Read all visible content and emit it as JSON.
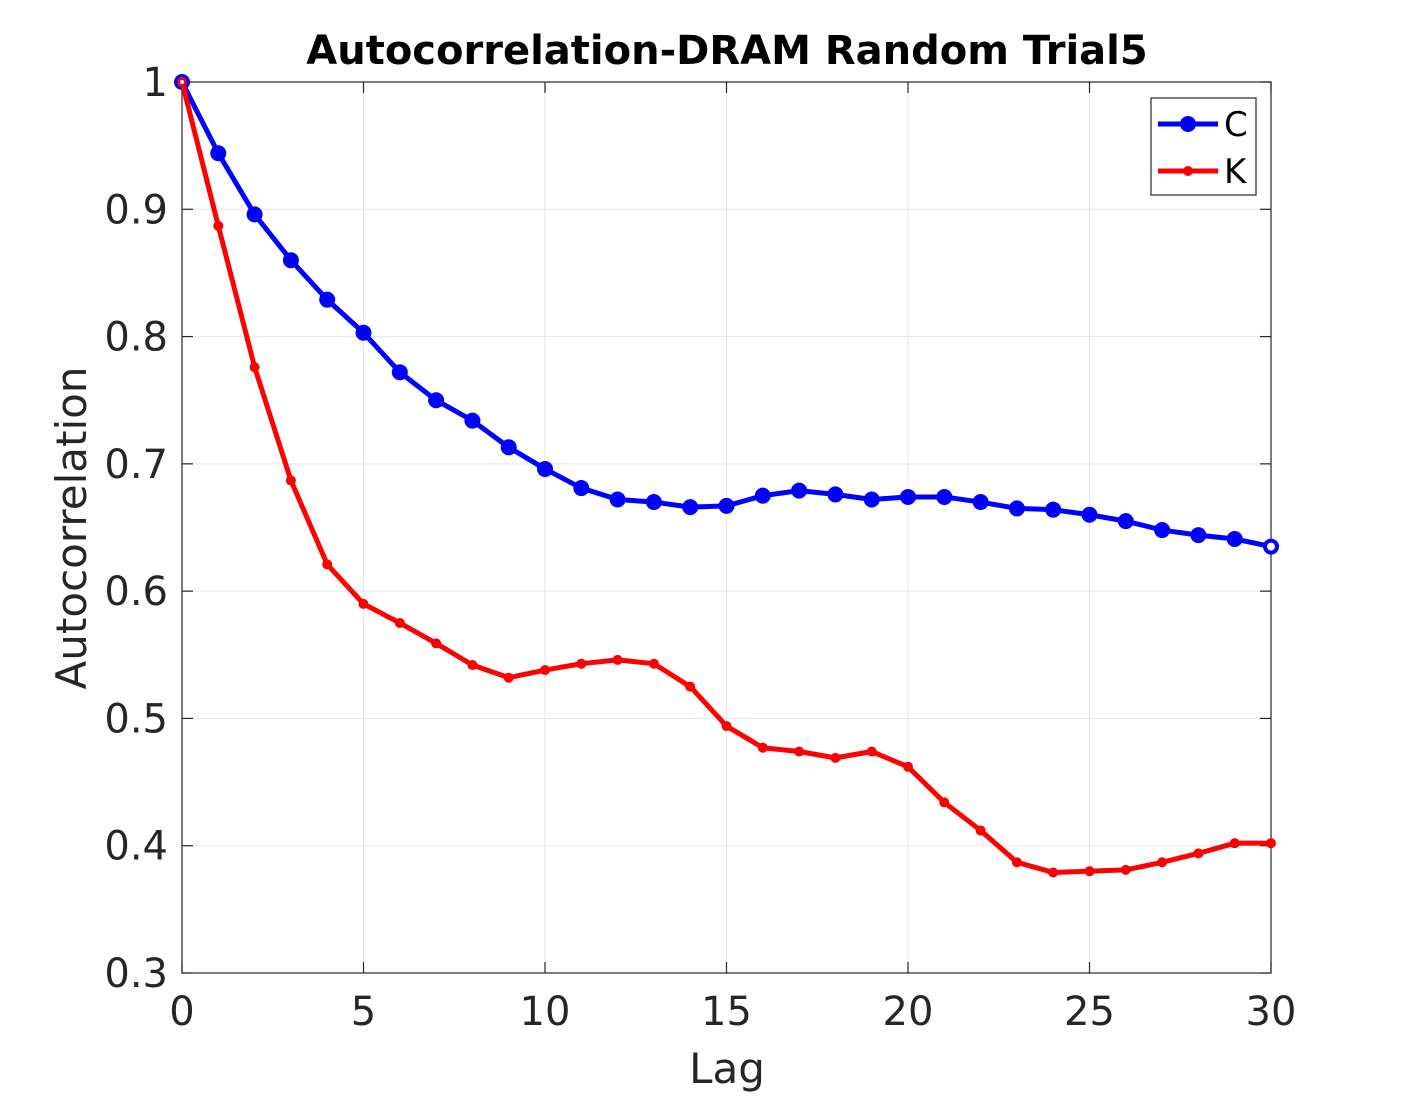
{
  "chart_data": {
    "type": "line",
    "title": "Autocorrelation-DRAM Random Trial5",
    "xlabel": "Lag",
    "ylabel": "Autocorrelation",
    "xlim": [
      0,
      30
    ],
    "ylim": [
      0.3,
      1
    ],
    "xticks": [
      0,
      5,
      10,
      15,
      20,
      25,
      30
    ],
    "yticks": [
      0.3,
      0.4,
      0.5,
      0.6,
      0.7,
      0.8,
      0.9,
      1
    ],
    "xtick_labels": [
      "0",
      "5",
      "10",
      "15",
      "20",
      "25",
      "30"
    ],
    "ytick_labels": [
      "0.3",
      "0.4",
      "0.5",
      "0.6",
      "0.7",
      "0.8",
      "0.9",
      "1"
    ],
    "grid": true,
    "legend_position": "top-right",
    "x": [
      0,
      1,
      2,
      3,
      4,
      5,
      6,
      7,
      8,
      9,
      10,
      11,
      12,
      13,
      14,
      15,
      16,
      17,
      18,
      19,
      20,
      21,
      22,
      23,
      24,
      25,
      26,
      27,
      28,
      29,
      30
    ],
    "series": [
      {
        "name": "C",
        "color": "#0000ff",
        "marker": "circle-large",
        "values": [
          1.0,
          0.944,
          0.896,
          0.86,
          0.829,
          0.803,
          0.772,
          0.75,
          0.734,
          0.713,
          0.696,
          0.681,
          0.672,
          0.67,
          0.666,
          0.667,
          0.675,
          0.679,
          0.676,
          0.672,
          0.674,
          0.674,
          0.67,
          0.665,
          0.664,
          0.66,
          0.655,
          0.648,
          0.644,
          0.641,
          0.635
        ]
      },
      {
        "name": "K",
        "color": "#ff0000",
        "marker": "circle-small",
        "values": [
          1.0,
          0.887,
          0.776,
          0.687,
          0.621,
          0.59,
          0.575,
          0.559,
          0.542,
          0.532,
          0.538,
          0.543,
          0.546,
          0.543,
          0.525,
          0.494,
          0.477,
          0.474,
          0.469,
          0.474,
          0.462,
          0.434,
          0.412,
          0.387,
          0.379,
          0.38,
          0.381,
          0.387,
          0.394,
          0.402,
          0.402
        ]
      }
    ]
  }
}
